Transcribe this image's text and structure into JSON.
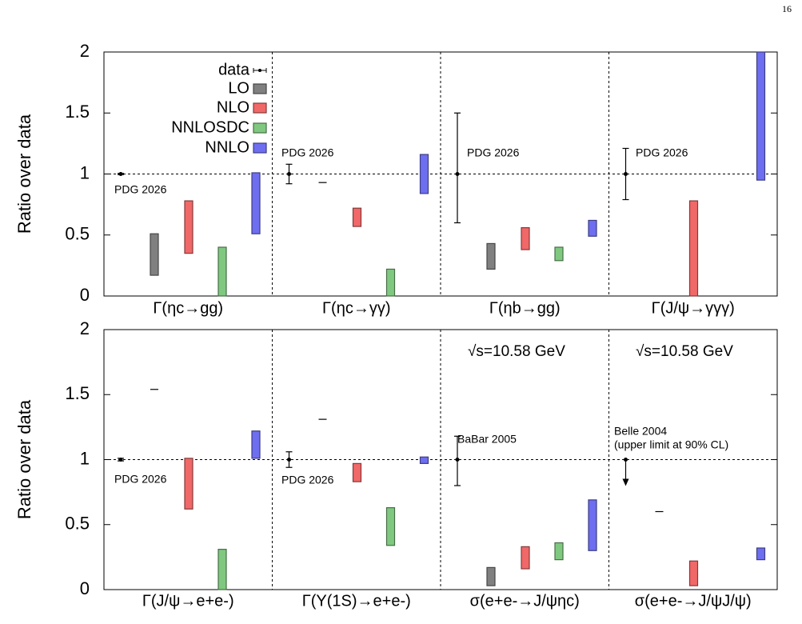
{
  "page_number": "16",
  "chart_data": [
    {
      "type": "range",
      "ylabel": "Ratio over data",
      "ylim": [
        0,
        2
      ],
      "yticks": [
        0,
        0.5,
        1,
        1.5,
        2
      ],
      "reference_line": 1,
      "categories": [
        "Γ(ηc→gg)",
        "Γ(ηc→γγ)",
        "Γ(ηb→gg)",
        "Γ(J/ψ→γγγ)"
      ],
      "data": {
        "name": "data",
        "values": [
          1,
          1,
          1,
          1
        ],
        "ranges": [
          [
            0.995,
            1.005
          ],
          [
            0.92,
            1.08
          ],
          [
            0.6,
            1.5
          ],
          [
            0.79,
            1.21
          ]
        ],
        "upper_limits": [
          false,
          false,
          false,
          false
        ]
      },
      "series": [
        {
          "name": "LO",
          "color": "#808080",
          "values": [
            [
              0.17,
              0.51
            ],
            0.93,
            [
              0.22,
              0.43
            ],
            null
          ]
        },
        {
          "name": "NLO",
          "color": "#f06868",
          "values": [
            [
              0.35,
              0.78
            ],
            [
              0.57,
              0.72
            ],
            [
              0.38,
              0.56
            ],
            [
              0,
              0.78
            ]
          ]
        },
        {
          "name": "NNLOSDC",
          "color": "#80c880",
          "values": [
            [
              0,
              0.4
            ],
            [
              0,
              0.22
            ],
            [
              0.29,
              0.4
            ],
            null
          ]
        },
        {
          "name": "NNLO",
          "color": "#6e6ef0",
          "values": [
            [
              0.51,
              1.01
            ],
            [
              0.84,
              1.16
            ],
            [
              0.49,
              0.62
            ],
            [
              0.95,
              2
            ]
          ]
        }
      ],
      "legend": true,
      "annotations": [
        "PDG 2026",
        "PDG 2026",
        "PDG 2026",
        "PDG 2026"
      ]
    },
    {
      "type": "range",
      "ylabel": "Ratio over data",
      "ylim": [
        0,
        2
      ],
      "yticks": [
        0,
        0.5,
        1,
        1.5,
        2
      ],
      "reference_line": 1,
      "categories": [
        "Γ(J/ψ→e+e-)",
        "Γ(Υ(1S)→e+e-)",
        "σ(e+e-→J/ψηc)",
        "σ(e+e-→J/ψJ/ψ)"
      ],
      "data": {
        "name": "data",
        "values": [
          1,
          1,
          1,
          1
        ],
        "ranges": [
          [
            0.99,
            1.01
          ],
          [
            0.94,
            1.06
          ],
          [
            0.8,
            1.18
          ],
          null
        ],
        "upper_limits": [
          false,
          false,
          false,
          true
        ]
      },
      "series": [
        {
          "name": "LO",
          "color": "#808080",
          "values": [
            1.54,
            1.31,
            [
              0.03,
              0.17
            ],
            0.6
          ]
        },
        {
          "name": "NLO",
          "color": "#f06868",
          "values": [
            [
              0.62,
              1.01
            ],
            [
              0.83,
              0.97
            ],
            [
              0.16,
              0.33
            ],
            [
              0.03,
              0.22
            ]
          ]
        },
        {
          "name": "NNLOSDC",
          "color": "#80c880",
          "values": [
            [
              0,
              0.31
            ],
            [
              0.34,
              0.63
            ],
            [
              0.23,
              0.36
            ],
            null
          ]
        },
        {
          "name": "NNLO",
          "color": "#6e6ef0",
          "values": [
            [
              1.01,
              1.22
            ],
            [
              0.97,
              1.02
            ],
            [
              0.3,
              0.69
            ],
            [
              0.23,
              0.32
            ]
          ]
        }
      ],
      "legend": false,
      "annotations": [
        "PDG 2026",
        "PDG 2026",
        "BaBar 2005",
        "Belle 2004",
        "(upper limit at 90% CL)",
        "√s=10.58 GeV",
        "√s=10.58 GeV"
      ]
    }
  ]
}
